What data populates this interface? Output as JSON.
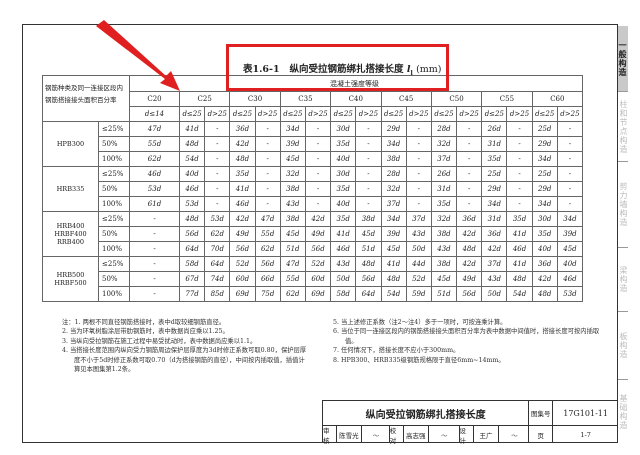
{
  "title": {
    "prefix": "表1.6-1",
    "text": "纵向受拉钢筋绑扎搭接长度",
    "symbol": "l",
    "sub": "l",
    "unit": "(mm)"
  },
  "header": {
    "row_label": "钢筋种类及同一连接区段内钢筋搭接接头面积百分率",
    "concrete_grade": "混凝土强度等级",
    "grades": [
      "C20",
      "C25",
      "C30",
      "C35",
      "C40",
      "C45",
      "C50",
      "C55",
      "C60"
    ],
    "c20_sub": "d≤14",
    "sub": [
      "d≤25",
      "d>25"
    ]
  },
  "groups": [
    {
      "name": "HPB300",
      "rows": [
        {
          "pct": "≤25%",
          "v": [
            "47d",
            "41d",
            "-",
            "36d",
            "-",
            "34d",
            "-",
            "30d",
            "-",
            "29d",
            "-",
            "28d",
            "-",
            "26d",
            "-",
            "25d",
            "-"
          ]
        },
        {
          "pct": "50%",
          "v": [
            "55d",
            "48d",
            "-",
            "42d",
            "-",
            "39d",
            "-",
            "35d",
            "-",
            "34d",
            "-",
            "32d",
            "-",
            "31d",
            "-",
            "29d",
            "-"
          ]
        },
        {
          "pct": "100%",
          "v": [
            "62d",
            "54d",
            "-",
            "48d",
            "-",
            "45d",
            "-",
            "40d",
            "-",
            "38d",
            "-",
            "37d",
            "-",
            "35d",
            "-",
            "34d",
            "-"
          ]
        }
      ]
    },
    {
      "name": "HRB335",
      "rows": [
        {
          "pct": "≤25%",
          "v": [
            "46d",
            "40d",
            "-",
            "35d",
            "-",
            "32d",
            "-",
            "30d",
            "-",
            "28d",
            "-",
            "26d",
            "-",
            "25d",
            "-",
            "25d",
            "-"
          ]
        },
        {
          "pct": "50%",
          "v": [
            "53d",
            "46d",
            "-",
            "41d",
            "-",
            "38d",
            "-",
            "35d",
            "-",
            "32d",
            "-",
            "31d",
            "-",
            "29d",
            "-",
            "29d",
            "-"
          ]
        },
        {
          "pct": "100%",
          "v": [
            "61d",
            "53d",
            "-",
            "46d",
            "-",
            "43d",
            "-",
            "40d",
            "-",
            "37d",
            "-",
            "35d",
            "-",
            "34d",
            "-",
            "34d",
            "-"
          ]
        }
      ]
    },
    {
      "name": "HRB400 HRBF400 RRB400",
      "rows": [
        {
          "pct": "≤25%",
          "v": [
            "-",
            "48d",
            "53d",
            "42d",
            "47d",
            "38d",
            "42d",
            "35d",
            "38d",
            "34d",
            "37d",
            "32d",
            "36d",
            "31d",
            "35d",
            "30d",
            "34d"
          ]
        },
        {
          "pct": "50%",
          "v": [
            "-",
            "56d",
            "62d",
            "49d",
            "55d",
            "45d",
            "49d",
            "41d",
            "45d",
            "39d",
            "43d",
            "38d",
            "42d",
            "36d",
            "41d",
            "35d",
            "39d"
          ]
        },
        {
          "pct": "100%",
          "v": [
            "-",
            "64d",
            "70d",
            "56d",
            "62d",
            "51d",
            "56d",
            "46d",
            "51d",
            "45d",
            "50d",
            "43d",
            "48d",
            "42d",
            "46d",
            "40d",
            "45d"
          ]
        }
      ]
    },
    {
      "name": "HRB500 HRBF500",
      "rows": [
        {
          "pct": "≤25%",
          "v": [
            "-",
            "58d",
            "64d",
            "52d",
            "56d",
            "47d",
            "52d",
            "43d",
            "48d",
            "41d",
            "44d",
            "38d",
            "42d",
            "37d",
            "41d",
            "36d",
            "40d"
          ]
        },
        {
          "pct": "50%",
          "v": [
            "-",
            "67d",
            "74d",
            "60d",
            "66d",
            "55d",
            "60d",
            "50d",
            "56d",
            "48d",
            "52d",
            "45d",
            "49d",
            "43d",
            "48d",
            "42d",
            "46d"
          ]
        },
        {
          "pct": "100%",
          "v": [
            "-",
            "77d",
            "85d",
            "69d",
            "75d",
            "62d",
            "69d",
            "58d",
            "64d",
            "54d",
            "59d",
            "51d",
            "56d",
            "50d",
            "54d",
            "48d",
            "53d"
          ]
        }
      ]
    }
  ],
  "notes_left": [
    "注：1. 两根不同直径钢筋搭接时，表中d取较细钢筋直径。",
    "2. 当为环氧树脂涂层带肋钢筋时，表中数据尚应乘以1.25。",
    "3. 当纵向受拉钢筋在施工过程中易受扰动时，表中数据尚应乘以1.1。",
    "4. 当搭接长度范围内纵向受力钢筋周边保护层厚度为3d时修正系数可取0.80，保护层厚度不小于5d时修正系数可取0.70（d为搭接钢筋的直径），中间按内插取值，插值计算见本图集第1.2条。"
  ],
  "notes_right": [
    "5. 当上述修正系数（注2～注4）多于一项时，可按连乘计算。",
    "6. 当位于同一连接区段内的钢筋搭接接头面积百分率为表中数据中间值时，搭接长度可按内插取值。",
    "7. 任何情况下，搭接长度不应小于300mm。",
    "8. HPB300、HRB335级钢筋规格限于直径6mm~14mm。"
  ],
  "title_block": {
    "name": "纵向受拉钢筋绑扎搭接长度",
    "atlas_label": "图集号",
    "atlas_no": "17G101-11",
    "review": "审核",
    "reviewer": "陈雪光",
    "check": "校对",
    "checker": "高志强",
    "design": "设计",
    "designer": "王广",
    "page_label": "页",
    "page": "1-7"
  },
  "side_tabs": [
    "一般构造",
    "柱和节点构造",
    "剪力墙构造",
    "梁构造",
    "板构造",
    "基础构造"
  ],
  "colors": {
    "highlight": "#e02020",
    "active_tab": "#c9c9c9"
  }
}
